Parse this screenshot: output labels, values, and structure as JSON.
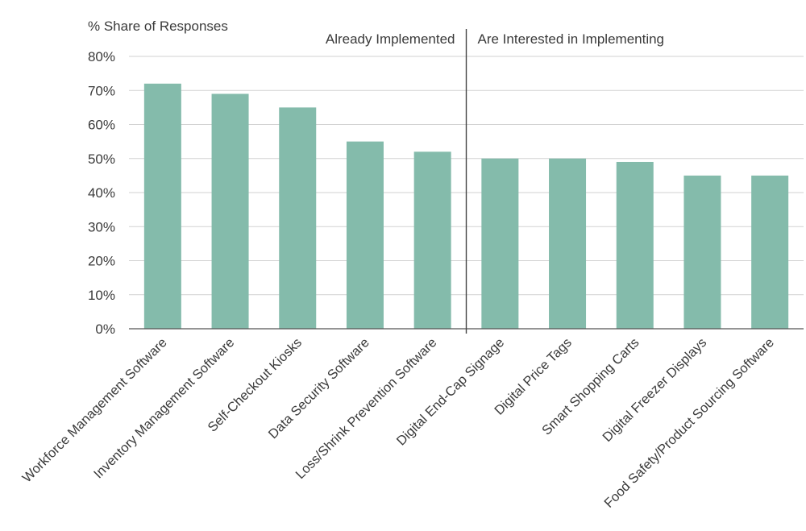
{
  "chart_data": {
    "type": "bar",
    "ylabel": "% Share of Responses",
    "ylim": [
      0,
      80
    ],
    "yticks": [
      "0%",
      "10%",
      "20%",
      "30%",
      "40%",
      "50%",
      "60%",
      "70%",
      "80%"
    ],
    "grid": true,
    "bar_color": "#84bbab",
    "sections": [
      {
        "label": "Already Implemented"
      },
      {
        "label": "Are Interested in Implementing"
      }
    ],
    "categories": [
      "Workforce Management Software",
      "Inventory Management Software",
      "Self-Checkout Kiosks",
      "Data Security Software",
      "Loss/Shrink Prevention Software",
      "Digital End-Cap Signage",
      "Digital Price Tags",
      "Smart Shopping Carts",
      "Digital Freezer Displays",
      "Food Safety/Product Sourcing Software"
    ],
    "values": [
      72,
      69,
      65,
      55,
      52,
      50,
      50,
      49,
      45,
      45
    ],
    "section_split_after": 5
  }
}
